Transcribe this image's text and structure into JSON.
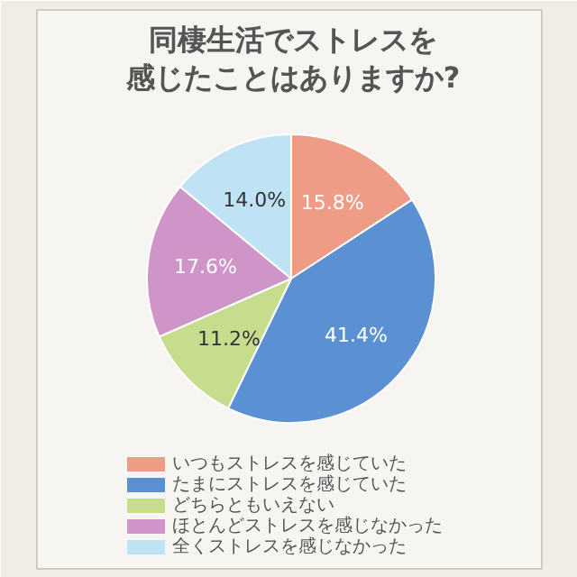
{
  "chart_data": {
    "type": "pie",
    "title": [
      "同棲生活でストレスを",
      "感じたことはありますか?"
    ],
    "categories": [
      "いつもストレスを感じていた",
      "たまにストレスを感じていた",
      "どちらともいえない",
      "ほとんどストレスを感じなかった",
      "全くストレスを感じなかった"
    ],
    "values": [
      15.8,
      41.4,
      11.2,
      17.6,
      14.0
    ],
    "value_labels": [
      "15.8%",
      "41.4%",
      "11.2%",
      "17.6%",
      "14.0%"
    ],
    "colors": [
      "#ee9c86",
      "#5b91d3",
      "#c6dd8e",
      "#cf94c8",
      "#bfe2f4"
    ],
    "legend": "bottom"
  }
}
